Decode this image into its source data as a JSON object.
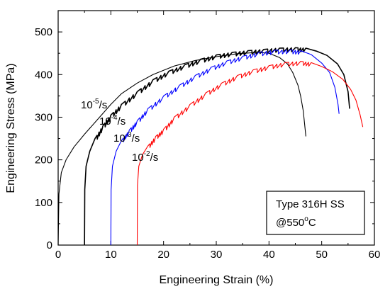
{
  "chart_data": {
    "type": "line",
    "xlabel": "Engineering Strain (%)",
    "ylabel": "Engineering Stress (MPa)",
    "xlim": [
      0,
      60
    ],
    "ylim": [
      0,
      550
    ],
    "x_ticks": [
      0,
      10,
      20,
      30,
      40,
      50,
      60
    ],
    "y_ticks": [
      0,
      100,
      200,
      300,
      400,
      500
    ],
    "grid": false,
    "annotation": {
      "line1": "Type 316H SS",
      "line2_prefix": "@550",
      "line2_sup": "o",
      "line2_suffix": "C"
    },
    "series": [
      {
        "label_base": "10",
        "label_exp": "-5",
        "label_unit": "/s",
        "color": "#000000",
        "serrated": false,
        "points": [
          [
            0,
            0
          ],
          [
            0.15,
            120
          ],
          [
            0.6,
            170
          ],
          [
            1.5,
            200
          ],
          [
            3,
            230
          ],
          [
            5,
            260
          ],
          [
            7.5,
            295
          ],
          [
            10,
            330
          ],
          [
            12,
            355
          ],
          [
            15,
            380
          ],
          [
            18,
            400
          ],
          [
            22,
            420
          ],
          [
            26,
            433
          ],
          [
            30,
            442
          ],
          [
            34,
            449
          ],
          [
            38,
            452
          ],
          [
            40,
            450
          ],
          [
            42,
            440
          ],
          [
            43.5,
            425
          ],
          [
            44.5,
            405
          ],
          [
            45.5,
            375
          ],
          [
            46,
            350
          ],
          [
            46.5,
            315
          ],
          [
            47,
            255
          ]
        ]
      },
      {
        "label_base": "10",
        "label_exp": "-4",
        "label_unit": "/s",
        "color": "#000000",
        "serrated": true,
        "points": [
          [
            5,
            0
          ],
          [
            5.05,
            130
          ],
          [
            5.3,
            185
          ],
          [
            6,
            220
          ],
          [
            7,
            250
          ],
          [
            8.5,
            280
          ],
          [
            10,
            305
          ],
          [
            12,
            330
          ],
          [
            15,
            360
          ],
          [
            18,
            388
          ],
          [
            21,
            408
          ],
          [
            24,
            423
          ],
          [
            27,
            436
          ],
          [
            30,
            446
          ],
          [
            33,
            452
          ],
          [
            36,
            456
          ],
          [
            39,
            459
          ],
          [
            42,
            462
          ],
          [
            45,
            463
          ],
          [
            47,
            462
          ],
          [
            49,
            455
          ],
          [
            51,
            445
          ],
          [
            53,
            425
          ],
          [
            54.2,
            400
          ],
          [
            55,
            360
          ],
          [
            55.3,
            320
          ]
        ]
      },
      {
        "label_base": "10",
        "label_exp": "-3",
        "label_unit": "/s",
        "color": "#0000ff",
        "serrated": true,
        "points": [
          [
            10,
            0
          ],
          [
            10.05,
            130
          ],
          [
            10.3,
            185
          ],
          [
            11,
            220
          ],
          [
            12,
            245
          ],
          [
            13.5,
            270
          ],
          [
            15,
            292
          ],
          [
            17,
            320
          ],
          [
            20,
            350
          ],
          [
            23,
            375
          ],
          [
            26,
            398
          ],
          [
            29,
            417
          ],
          [
            32,
            432
          ],
          [
            35,
            443
          ],
          [
            38,
            452
          ],
          [
            41,
            457
          ],
          [
            44,
            458
          ],
          [
            46,
            456
          ],
          [
            48,
            447
          ],
          [
            50,
            427
          ],
          [
            51.5,
            405
          ],
          [
            52.5,
            370
          ],
          [
            53.1,
            330
          ],
          [
            53.3,
            308
          ]
        ]
      },
      {
        "label_base": "10",
        "label_exp": "-2",
        "label_unit": "/s",
        "color": "#ff0000",
        "serrated": true,
        "points": [
          [
            15,
            0
          ],
          [
            15.05,
            140
          ],
          [
            15.3,
            185
          ],
          [
            16,
            212
          ],
          [
            17,
            232
          ],
          [
            18.5,
            255
          ],
          [
            20,
            272
          ],
          [
            22,
            300
          ],
          [
            25,
            330
          ],
          [
            28,
            357
          ],
          [
            31,
            380
          ],
          [
            34,
            398
          ],
          [
            37,
            411
          ],
          [
            40,
            421
          ],
          [
            43,
            428
          ],
          [
            46,
            431
          ],
          [
            48,
            428
          ],
          [
            50,
            419
          ],
          [
            52,
            407
          ],
          [
            54,
            389
          ],
          [
            55.5,
            365
          ],
          [
            56.5,
            340
          ],
          [
            57.3,
            305
          ],
          [
            57.8,
            277
          ]
        ]
      }
    ]
  }
}
